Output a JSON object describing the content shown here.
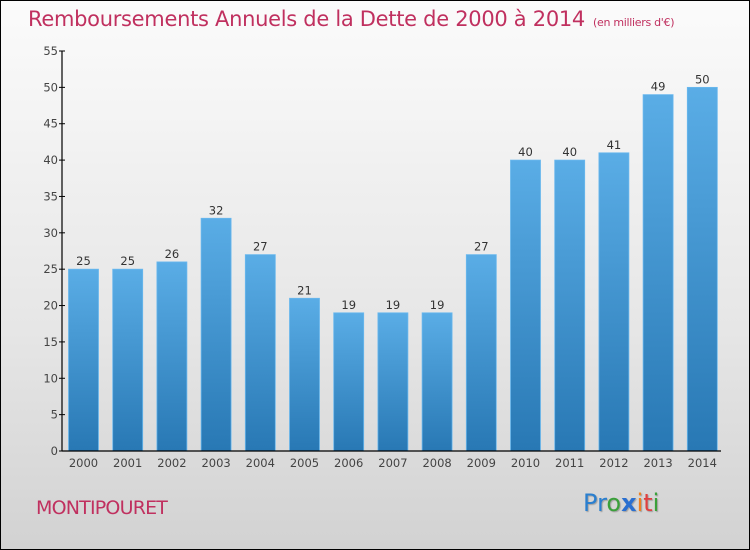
{
  "header": {
    "title": "Remboursements Annuels de la Dette de 2000 à 2014",
    "unit": "(en milliers d'€)"
  },
  "footer": {
    "town": "MONTIPOURET",
    "logo_letters": [
      {
        "ch": "P",
        "color": "#2a7fcf"
      },
      {
        "ch": "r",
        "color": "#2a7fcf"
      },
      {
        "ch": "o",
        "color": "#3aa03a"
      },
      {
        "ch": "x",
        "color": "#2a6fd0"
      },
      {
        "ch": "i",
        "color": "#f08020"
      },
      {
        "ch": "t",
        "color": "#e04040"
      },
      {
        "ch": "i",
        "color": "#3aa03a"
      }
    ]
  },
  "colors": {
    "title": "#c0305f",
    "bar_top": "#5aade6",
    "bar_bottom": "#2878b4",
    "axis": "#000000"
  },
  "chart_data": {
    "type": "bar",
    "title": "Remboursements Annuels de la Dette de 2000 à 2014",
    "subtitle": "(en milliers d'€)",
    "xlabel": "",
    "ylabel": "",
    "categories": [
      "2000",
      "2001",
      "2002",
      "2003",
      "2004",
      "2005",
      "2006",
      "2007",
      "2008",
      "2009",
      "2010",
      "2011",
      "2012",
      "2013",
      "2014"
    ],
    "values": [
      25,
      25,
      26,
      32,
      27,
      21,
      19,
      19,
      19,
      27,
      40,
      40,
      41,
      49,
      50
    ],
    "ylim": [
      0,
      55
    ],
    "yticks": [
      0,
      5,
      10,
      15,
      20,
      25,
      30,
      35,
      40,
      45,
      50,
      55
    ],
    "grid": false,
    "data_labels": true
  }
}
